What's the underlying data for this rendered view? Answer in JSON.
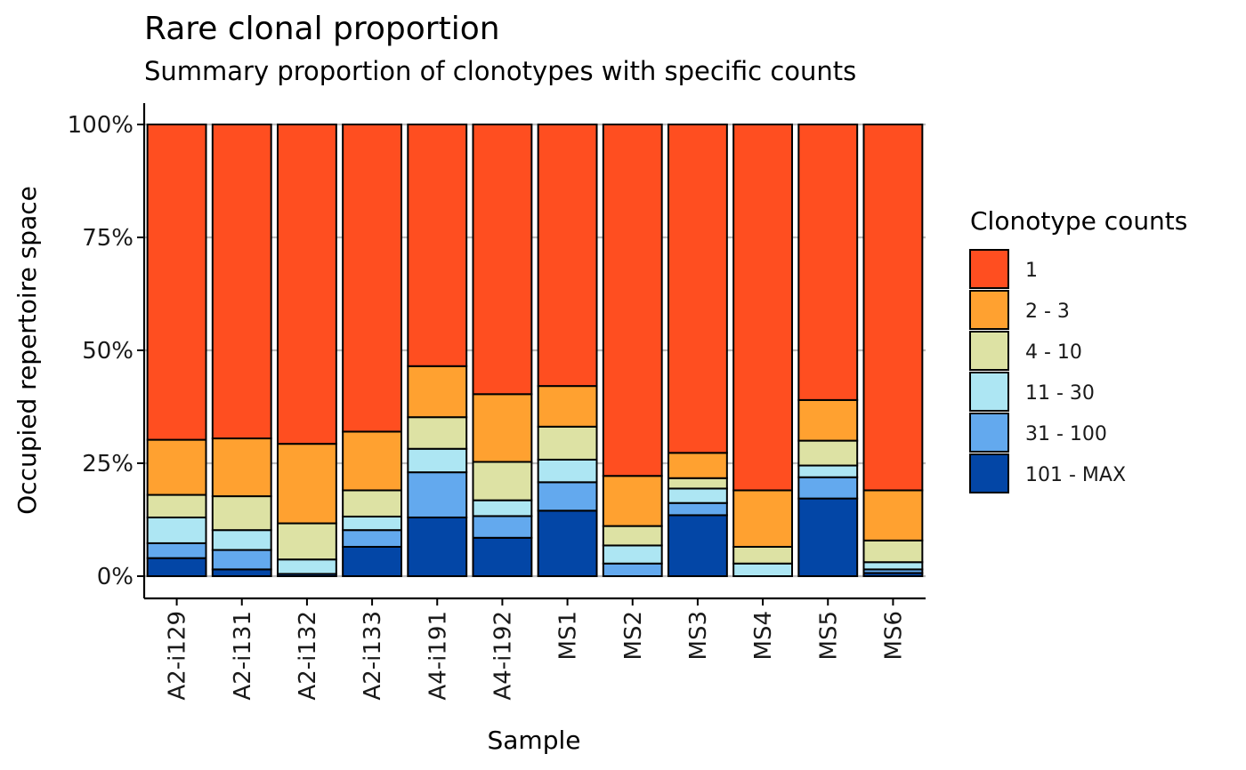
{
  "chart_data": {
    "type": "bar",
    "stacked": true,
    "title": "Rare clonal proportion",
    "subtitle": "Summary proportion of clonotypes with specific counts",
    "xlabel": "Sample",
    "ylabel": "Occupied repertoire space",
    "ylim": [
      0,
      1
    ],
    "yticks": [
      {
        "value": 0,
        "label": "0%"
      },
      {
        "value": 0.25,
        "label": "25%"
      },
      {
        "value": 0.5,
        "label": "50%"
      },
      {
        "value": 0.75,
        "label": "75%"
      },
      {
        "value": 1,
        "label": "100%"
      }
    ],
    "grid": "horizontal major lines",
    "legend": {
      "title": "Clonotype counts",
      "position": "right"
    },
    "categories": [
      "A2-i129",
      "A2-i131",
      "A2-i132",
      "A2-i133",
      "A4-i191",
      "A4-i192",
      "MS1",
      "MS2",
      "MS3",
      "MS4",
      "MS5",
      "MS6"
    ],
    "series": [
      {
        "name": "101 - MAX",
        "color": "#0346A6",
        "values": [
          0.04,
          0.015,
          0.005,
          0.065,
          0.13,
          0.085,
          0.145,
          0.0,
          0.135,
          0.0,
          0.172,
          0.007
        ]
      },
      {
        "name": "31 - 100",
        "color": "#63A9EE",
        "values": [
          0.033,
          0.043,
          0.0,
          0.037,
          0.1,
          0.048,
          0.063,
          0.028,
          0.027,
          0.0,
          0.047,
          0.008
        ]
      },
      {
        "name": "11 - 30",
        "color": "#ADE6F3",
        "values": [
          0.057,
          0.044,
          0.032,
          0.03,
          0.052,
          0.035,
          0.05,
          0.04,
          0.032,
          0.028,
          0.026,
          0.016
        ]
      },
      {
        "name": "4 - 10",
        "color": "#DDE2A4",
        "values": [
          0.05,
          0.075,
          0.08,
          0.058,
          0.07,
          0.085,
          0.073,
          0.043,
          0.023,
          0.037,
          0.055,
          0.048
        ]
      },
      {
        "name": "2 - 3",
        "color": "#FFA130",
        "values": [
          0.122,
          0.128,
          0.176,
          0.13,
          0.113,
          0.15,
          0.09,
          0.111,
          0.056,
          0.125,
          0.09,
          0.111
        ]
      },
      {
        "name": "1",
        "color": "#FF4E20",
        "values": [
          0.698,
          0.695,
          0.707,
          0.68,
          0.535,
          0.597,
          0.579,
          0.778,
          0.727,
          0.81,
          0.61,
          0.81
        ]
      }
    ]
  }
}
